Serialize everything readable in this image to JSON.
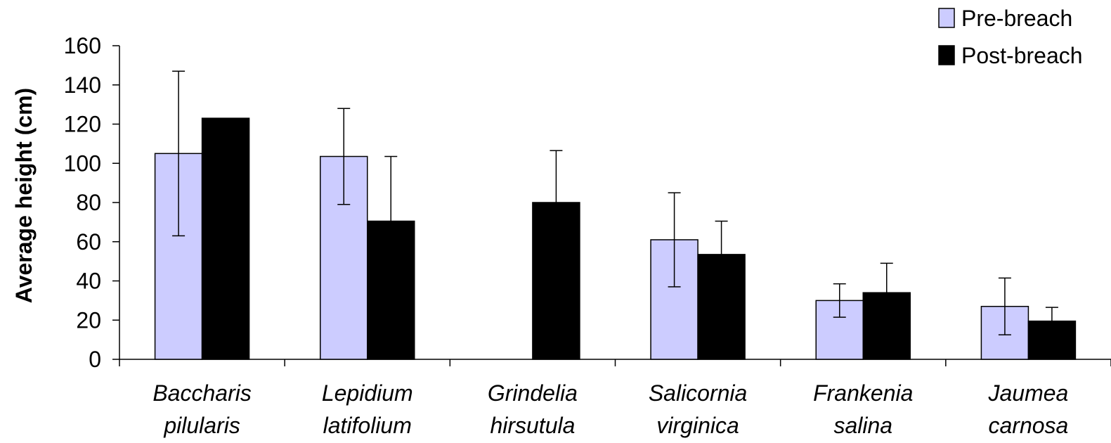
{
  "chart_data": {
    "type": "bar",
    "ylabel": "Average height (cm)",
    "ylim": [
      0,
      160
    ],
    "yticks": [
      0,
      20,
      40,
      60,
      80,
      100,
      120,
      140,
      160
    ],
    "grid": false,
    "legend_position": "top-right",
    "categories": [
      {
        "line1": "Baccharis",
        "line2": "pilularis"
      },
      {
        "line1": "Lepidium",
        "line2": "latifolium"
      },
      {
        "line1": "Grindelia",
        "line2": "hirsutula"
      },
      {
        "line1": "Salicornia",
        "line2": "virginica"
      },
      {
        "line1": "Frankenia",
        "line2": "salina"
      },
      {
        "line1": "Jaumea",
        "line2": "carnosa"
      }
    ],
    "series": [
      {
        "name": "Pre-breach",
        "color": "#ccccff",
        "values": [
          105,
          103.5,
          0,
          61,
          30,
          27
        ],
        "error": [
          42,
          24.5,
          0,
          24,
          8.5,
          14.5
        ]
      },
      {
        "name": "Post-breach",
        "color": "#000000",
        "values": [
          123,
          70.5,
          80,
          53.5,
          34,
          19.5
        ],
        "error": [
          0,
          33,
          26.5,
          17,
          15,
          7
        ]
      }
    ]
  }
}
